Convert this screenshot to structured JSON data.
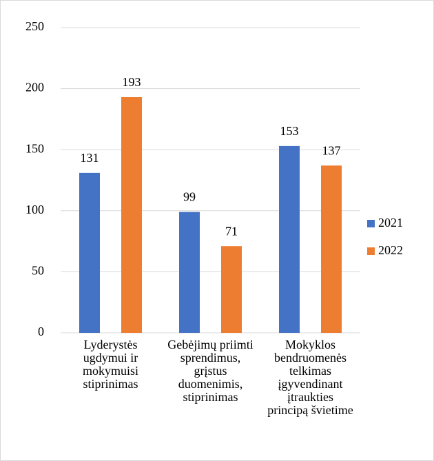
{
  "chart_data": {
    "type": "bar",
    "categories": [
      [
        "Lyderystės",
        "ugdymui ir",
        "mokymuisi",
        "stiprinimas"
      ],
      [
        "Gebėjimų priimti",
        "sprendimus,",
        "grįstus",
        "duomenimis,",
        "stiprinimas"
      ],
      [
        "Mokyklos",
        "bendruomenės",
        "telkimas",
        "įgyvendinant",
        "įtraukties",
        "principą švietime"
      ]
    ],
    "series": [
      {
        "name": "2021",
        "color": "#4472c4",
        "values": [
          131,
          99,
          153
        ]
      },
      {
        "name": "2022",
        "color": "#ed7d31",
        "values": [
          193,
          71,
          137
        ]
      }
    ],
    "ylim": [
      0,
      250
    ],
    "yticks": [
      0,
      50,
      100,
      150,
      200,
      250
    ],
    "grid": true,
    "legend": "right"
  }
}
